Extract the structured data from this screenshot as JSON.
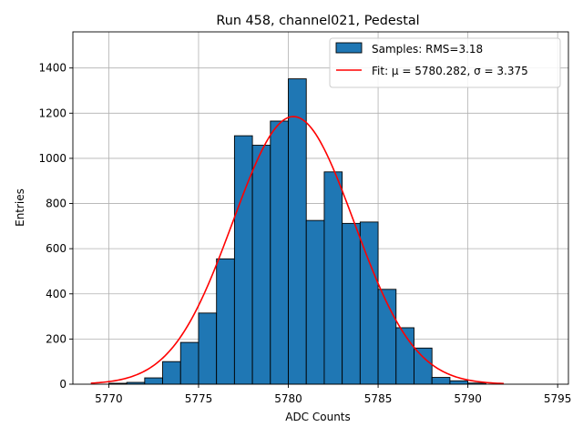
{
  "chart_data": {
    "type": "bar",
    "title": "Run 458, channel021, Pedestal",
    "xlabel": "ADC Counts",
    "ylabel": "Entries",
    "xlim": [
      5768.0,
      5795.6
    ],
    "ylim": [
      0,
      1560
    ],
    "xticks": [
      5770,
      5775,
      5780,
      5785,
      5790,
      5795
    ],
    "yticks": [
      0,
      200,
      400,
      600,
      800,
      1000,
      1200,
      1400
    ],
    "grid": true,
    "legend_position": "top-right",
    "bar_color": "#1f77b4",
    "fit_color": "#ff0000",
    "series": [
      {
        "name": "Samples: RMS=3.18",
        "type": "histogram",
        "bin_width": 1,
        "bin_edges_start": 5770,
        "values": [
          4,
          8,
          28,
          100,
          185,
          315,
          555,
          1100,
          1058,
          1165,
          1352,
          725,
          940,
          712,
          718,
          420,
          250,
          160,
          30,
          15,
          5,
          0,
          0,
          0
        ]
      },
      {
        "name": "Fit: μ = 5780.282, σ = 3.375",
        "type": "gaussian",
        "mu": 5780.282,
        "sigma": 3.375,
        "amplitude": 1185,
        "x_range": [
          5769,
          5792
        ]
      }
    ]
  }
}
